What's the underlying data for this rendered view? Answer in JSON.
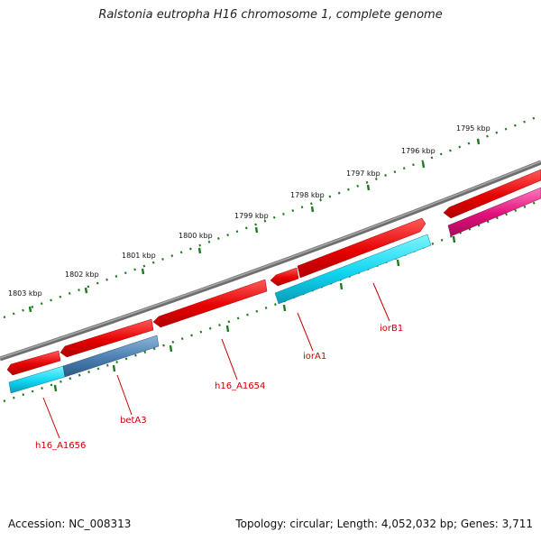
{
  "title": "Ralstonia eutropha H16 chromosome 1, complete genome",
  "footer": {
    "accession": "Accession: NC_008313",
    "summary": "Topology: circular; Length: 4,052,032 bp; Genes: 3,711"
  },
  "scale_labels": [
    "1795 kbp",
    "1796 kbp",
    "1797 kbp",
    "1798 kbp",
    "1799 kbp",
    "1800 kbp",
    "1801 kbp",
    "1802 kbp",
    "1803 kbp"
  ],
  "gene_labels": [
    "h16_A1656",
    "betA3",
    "h16_A1654",
    "iorA1",
    "iorB1"
  ],
  "colors": {
    "backbone": "#7a7a7a",
    "scale_ticks": "#1f7a1f",
    "gene_red": "#ee0000",
    "gene_cyan": "#00ccee",
    "gene_steel": "#4a7fb0",
    "gene_magenta": "#e0107a",
    "label_red": "#cc0000"
  }
}
